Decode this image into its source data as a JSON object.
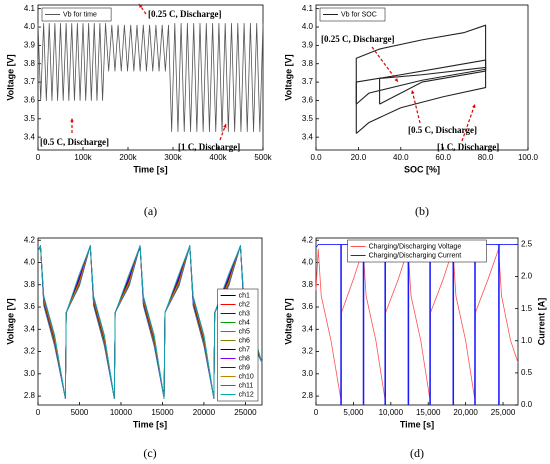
{
  "chart_data": [
    {
      "type": "line",
      "caption": "(a)",
      "xlabel": "Time [s]",
      "ylabel": "Voltage [V]",
      "legend": "upper left",
      "annotations": [
        "[0.25 C, Discharge]",
        "[0.5 C, Discharge]",
        "[1 C, Discharge]"
      ],
      "xlim": [
        0,
        500000
      ],
      "ylim": [
        3.33,
        4.12
      ],
      "xticks": [
        0,
        {
          "value": 100000,
          "label": "100k"
        },
        {
          "value": 200000,
          "label": "200k"
        },
        {
          "value": 300000,
          "label": "300k"
        },
        {
          "value": 400000,
          "label": "400k"
        },
        {
          "value": 500000,
          "label": "500k"
        }
      ],
      "yticks": [
        3.4,
        3.5,
        3.6,
        3.7,
        3.8,
        3.9,
        {
          "value": 4,
          "label": "4.0"
        },
        4.1
      ],
      "series": [
        {
          "name": "Vb for time",
          "color": "#555555",
          "x": [
            0,
            6000,
            12500,
            18500,
            25000,
            31000,
            37500,
            43500,
            50000,
            56000,
            62500,
            68500,
            75000,
            81000,
            87500,
            93500,
            100000,
            106000,
            112500,
            118500,
            125000,
            131000,
            137500,
            143500,
            150000,
            157000,
            164000,
            171000,
            178000,
            185000,
            192000,
            199000,
            206000,
            213000,
            220000,
            227000,
            234000,
            241000,
            248000,
            255000,
            262000,
            269000,
            276000,
            283000,
            290000,
            297000,
            304000,
            311000,
            318000,
            325000,
            332000,
            339000,
            346000,
            353000,
            360000,
            367000,
            374000,
            381000,
            388000,
            395000,
            402000,
            409000,
            416000,
            423000,
            430000,
            437000,
            444000,
            451000,
            458000,
            465000,
            472000,
            479000,
            486000,
            493000,
            500000
          ],
          "values": [
            4.02,
            3.6,
            4.02,
            3.6,
            4.02,
            3.6,
            4.02,
            3.6,
            4.02,
            3.6,
            4.02,
            3.6,
            4.02,
            3.6,
            4.02,
            3.6,
            4.02,
            3.6,
            4.02,
            3.6,
            4.02,
            3.6,
            4.02,
            3.6,
            4.02,
            3.76,
            4.01,
            3.76,
            4.01,
            3.76,
            4.01,
            3.76,
            4.01,
            3.76,
            4.01,
            3.76,
            4.01,
            3.76,
            4.01,
            3.76,
            4.01,
            3.76,
            4.01,
            3.76,
            4.01,
            3.43,
            4.02,
            3.43,
            4.02,
            3.43,
            4.02,
            3.43,
            4.02,
            3.43,
            4.02,
            3.43,
            4.02,
            3.43,
            4.02,
            3.43,
            4.02,
            3.43,
            4.02,
            3.43,
            4.02,
            3.43,
            4.02,
            3.43,
            4.02,
            3.43,
            4.02,
            3.43,
            4.02,
            3.43,
            4.02
          ]
        }
      ]
    },
    {
      "type": "line",
      "caption": "(b)",
      "xlabel": "SOC [%]",
      "ylabel": "Voltage [V]",
      "legend": "upper left",
      "annotations": [
        "[0.25 C, Discharge]",
        "[0.5 C, Discharge]",
        "[1 C, Discharge]"
      ],
      "xlim": [
        0,
        100
      ],
      "ylim": [
        3.33,
        4.12
      ],
      "xticks": [
        {
          "value": 0,
          "label": "0.0"
        },
        {
          "value": 20,
          "label": "20.0"
        },
        {
          "value": 40,
          "label": "40.0"
        },
        {
          "value": 60,
          "label": "60.0"
        },
        {
          "value": 80,
          "label": "80.0"
        },
        {
          "value": 100,
          "label": "100.0"
        }
      ],
      "yticks": [
        3.4,
        3.5,
        3.6,
        3.7,
        3.8,
        3.9,
        {
          "value": 4,
          "label": "4.0"
        },
        4.1
      ],
      "series": [
        {
          "name": "Vb for SOC",
          "color": "#222222",
          "x": [
            19,
            19,
            30,
            50,
            70,
            80,
            80,
            60,
            40,
            25,
            19,
            null,
            19,
            19,
            40,
            60,
            80,
            80,
            50,
            25,
            19,
            null,
            30,
            30,
            50,
            80,
            80,
            50,
            30
          ],
          "values": [
            3.42,
            3.83,
            3.88,
            3.93,
            3.97,
            4.01,
            3.67,
            3.62,
            3.56,
            3.48,
            3.42,
            null,
            3.58,
            3.7,
            3.74,
            3.78,
            3.82,
            3.77,
            3.71,
            3.64,
            3.58,
            null,
            3.58,
            3.72,
            3.74,
            3.78,
            3.76,
            3.7,
            3.58
          ]
        }
      ]
    },
    {
      "type": "line",
      "caption": "(c)",
      "xlabel": "Time [s]",
      "ylabel": "Voltage [V]",
      "legend": "lower right",
      "xlim": [
        0,
        27000
      ],
      "ylim": [
        2.72,
        4.22
      ],
      "xticks": [
        0,
        5000,
        10000,
        15000,
        20000,
        25000
      ],
      "yticks": [
        2.8,
        {
          "value": 3,
          "label": "3.0"
        },
        3.2,
        3.4,
        3.6,
        3.8,
        {
          "value": 4,
          "label": "4.0"
        },
        4.2
      ],
      "x": [
        0,
        300,
        700,
        2000,
        3300,
        3400,
        5000,
        6300,
        6700,
        8000,
        9200,
        9300,
        11000,
        12300,
        12700,
        14000,
        15200,
        15300,
        17000,
        18300,
        18700,
        20000,
        21200,
        21300,
        23000,
        24400,
        24800,
        26000,
        27000
      ],
      "series": [
        {
          "name": "ch1",
          "color": "#000000",
          "values": [
            4.1,
            4.15,
            3.62,
            3.26,
            2.78,
            3.55,
            3.8,
            4.15,
            3.62,
            3.26,
            2.78,
            3.55,
            3.8,
            4.15,
            3.62,
            3.26,
            2.78,
            3.55,
            3.8,
            4.15,
            3.62,
            3.26,
            2.78,
            3.55,
            3.8,
            4.15,
            3.62,
            3.26,
            3.1
          ]
        },
        {
          "name": "ch2",
          "color": "#ff0000",
          "values": [
            4.1,
            4.15,
            3.64,
            3.28,
            2.78,
            3.55,
            3.82,
            4.15,
            3.64,
            3.28,
            2.78,
            3.55,
            3.82,
            4.15,
            3.64,
            3.28,
            2.78,
            3.55,
            3.82,
            4.15,
            3.64,
            3.28,
            2.78,
            3.55,
            3.82,
            4.15,
            3.64,
            3.28,
            3.1
          ]
        },
        {
          "name": "ch3",
          "color": "#0000ff",
          "values": [
            4.1,
            4.15,
            3.66,
            3.3,
            2.78,
            3.55,
            3.84,
            4.15,
            3.66,
            3.3,
            2.78,
            3.55,
            3.84,
            4.15,
            3.66,
            3.3,
            2.78,
            3.55,
            3.84,
            4.15,
            3.66,
            3.3,
            2.78,
            3.55,
            3.84,
            4.15,
            3.66,
            3.3,
            3.1
          ]
        },
        {
          "name": "ch4",
          "color": "#00a000",
          "values": [
            4.1,
            4.15,
            3.63,
            3.29,
            2.78,
            3.55,
            3.83,
            4.15,
            3.63,
            3.29,
            2.78,
            3.55,
            3.83,
            4.15,
            3.63,
            3.29,
            2.78,
            3.55,
            3.83,
            4.15,
            3.63,
            3.29,
            2.78,
            3.55,
            3.83,
            4.15,
            3.63,
            3.29,
            3.1
          ]
        },
        {
          "name": "ch5",
          "color": "#ff00ff",
          "values": [
            4.1,
            4.15,
            3.67,
            3.31,
            2.78,
            3.55,
            3.86,
            4.15,
            3.67,
            3.31,
            2.78,
            3.55,
            3.86,
            4.15,
            3.67,
            3.31,
            2.78,
            3.55,
            3.86,
            4.15,
            3.67,
            3.31,
            2.78,
            3.55,
            3.86,
            4.15,
            3.67,
            3.31,
            3.1
          ]
        },
        {
          "name": "ch6",
          "color": "#808000",
          "values": [
            4.1,
            4.15,
            3.65,
            3.27,
            2.78,
            3.55,
            3.81,
            4.15,
            3.65,
            3.27,
            2.78,
            3.55,
            3.81,
            4.15,
            3.65,
            3.27,
            2.78,
            3.55,
            3.81,
            4.15,
            3.65,
            3.27,
            2.78,
            3.55,
            3.81,
            4.15,
            3.65,
            3.27,
            3.1
          ]
        },
        {
          "name": "ch7",
          "color": "#000080",
          "values": [
            4.1,
            4.15,
            3.68,
            3.33,
            2.78,
            3.55,
            3.87,
            4.15,
            3.68,
            3.33,
            2.78,
            3.55,
            3.87,
            4.15,
            3.68,
            3.33,
            2.78,
            3.55,
            3.87,
            4.15,
            3.68,
            3.33,
            2.78,
            3.55,
            3.87,
            4.15,
            3.68,
            3.33,
            3.1
          ]
        },
        {
          "name": "ch8",
          "color": "#8000ff",
          "values": [
            4.1,
            4.15,
            3.69,
            3.34,
            2.78,
            3.55,
            3.88,
            4.15,
            3.69,
            3.34,
            2.78,
            3.55,
            3.88,
            4.15,
            3.69,
            3.34,
            2.78,
            3.55,
            3.88,
            4.15,
            3.69,
            3.34,
            2.78,
            3.55,
            3.88,
            4.15,
            3.69,
            3.34,
            3.1
          ]
        },
        {
          "name": "ch9",
          "color": "#800000",
          "values": [
            4.1,
            4.15,
            3.64,
            3.3,
            2.78,
            3.55,
            3.85,
            4.15,
            3.64,
            3.3,
            2.78,
            3.55,
            3.85,
            4.15,
            3.64,
            3.3,
            2.78,
            3.55,
            3.85,
            4.15,
            3.64,
            3.3,
            2.78,
            3.55,
            3.85,
            4.15,
            3.64,
            3.3,
            3.1
          ]
        },
        {
          "name": "ch10",
          "color": "#c08000",
          "values": [
            4.1,
            4.15,
            3.66,
            3.32,
            2.78,
            3.55,
            3.83,
            4.15,
            3.66,
            3.32,
            2.78,
            3.55,
            3.83,
            4.15,
            3.66,
            3.32,
            2.78,
            3.55,
            3.83,
            4.15,
            3.66,
            3.32,
            2.78,
            3.55,
            3.83,
            4.15,
            3.66,
            3.32,
            3.1
          ]
        },
        {
          "name": "ch11",
          "color": "#4060c0",
          "values": [
            4.1,
            4.15,
            3.61,
            3.25,
            2.78,
            3.55,
            3.79,
            4.15,
            3.61,
            3.25,
            2.78,
            3.55,
            3.79,
            4.15,
            3.61,
            3.25,
            2.78,
            3.55,
            3.79,
            4.15,
            3.61,
            3.25,
            2.78,
            3.55,
            3.79,
            4.15,
            3.61,
            3.25,
            3.1
          ]
        },
        {
          "name": "ch12",
          "color": "#00b0b0",
          "values": [
            4.1,
            4.15,
            3.7,
            3.35,
            2.78,
            3.55,
            3.9,
            4.15,
            3.7,
            3.35,
            2.78,
            3.55,
            3.9,
            4.15,
            3.7,
            3.35,
            2.78,
            3.55,
            3.9,
            4.15,
            3.7,
            3.35,
            2.78,
            3.55,
            3.9,
            4.15,
            3.7,
            3.35,
            3.1
          ]
        }
      ]
    },
    {
      "type": "line",
      "caption": "(d)",
      "xlabel": "Time [s]",
      "ylabel": "Voltage [V]",
      "y2label": "Current [A]",
      "legend": "upper center",
      "xlim": [
        0,
        27000
      ],
      "ylim": [
        2.72,
        4.22
      ],
      "y2lim": [
        0,
        2.6
      ],
      "xticks": [
        0,
        {
          "value": 5000,
          "label": "5,000"
        },
        {
          "value": 10000,
          "label": "10,000"
        },
        {
          "value": 15000,
          "label": "15,000"
        },
        {
          "value": 20000,
          "label": "20,000"
        },
        {
          "value": 25000,
          "label": "25,000"
        }
      ],
      "yticks": [
        2.8,
        {
          "value": 3,
          "label": "3.0"
        },
        3.2,
        3.4,
        3.6,
        3.8,
        {
          "value": 4,
          "label": "4.0"
        },
        4.2
      ],
      "y2ticks": [
        {
          "value": 0,
          "label": "0.0"
        },
        0.5,
        {
          "value": 1,
          "label": "1.0"
        },
        1.5,
        {
          "value": 2,
          "label": "2.0"
        },
        2.5
      ],
      "series": [
        {
          "name": "Charging/Discharging Voltage",
          "color": "#ff5050",
          "x": [
            0,
            300,
            700,
            2000,
            3300,
            3400,
            5000,
            6300,
            6700,
            8000,
            9200,
            9300,
            11000,
            12300,
            12700,
            14000,
            15200,
            15300,
            17000,
            18300,
            18700,
            20000,
            21200,
            21300,
            23000,
            24400,
            24800,
            26000,
            27000
          ],
          "values": [
            3.75,
            4.12,
            3.7,
            3.3,
            2.78,
            3.55,
            3.85,
            4.12,
            3.7,
            3.3,
            2.78,
            3.55,
            3.85,
            4.12,
            3.7,
            3.3,
            2.78,
            3.55,
            3.85,
            4.12,
            3.7,
            3.3,
            2.78,
            3.55,
            3.85,
            4.12,
            3.7,
            3.3,
            3.1
          ]
        },
        {
          "name": "Charging/Discharging Current",
          "color": "#1a1aff",
          "axis": "y2",
          "x": [
            0,
            300,
            3300,
            3300,
            3400,
            3400,
            6300,
            6300,
            6400,
            6400,
            9200,
            9200,
            9300,
            9300,
            12300,
            12300,
            12400,
            12400,
            15200,
            15200,
            15300,
            15300,
            18300,
            18300,
            18400,
            18400,
            21200,
            21200,
            21300,
            21300,
            24400,
            24400,
            24500,
            24500,
            27000
          ],
          "values": [
            2.45,
            2.5,
            2.5,
            0,
            0,
            2.5,
            2.5,
            0,
            0,
            2.5,
            2.5,
            0,
            0,
            2.5,
            2.5,
            0,
            0,
            2.5,
            2.5,
            0,
            0,
            2.5,
            2.5,
            0,
            0,
            2.5,
            2.5,
            0,
            0,
            2.5,
            2.5,
            0,
            0,
            2.5,
            2.5
          ]
        }
      ]
    }
  ]
}
